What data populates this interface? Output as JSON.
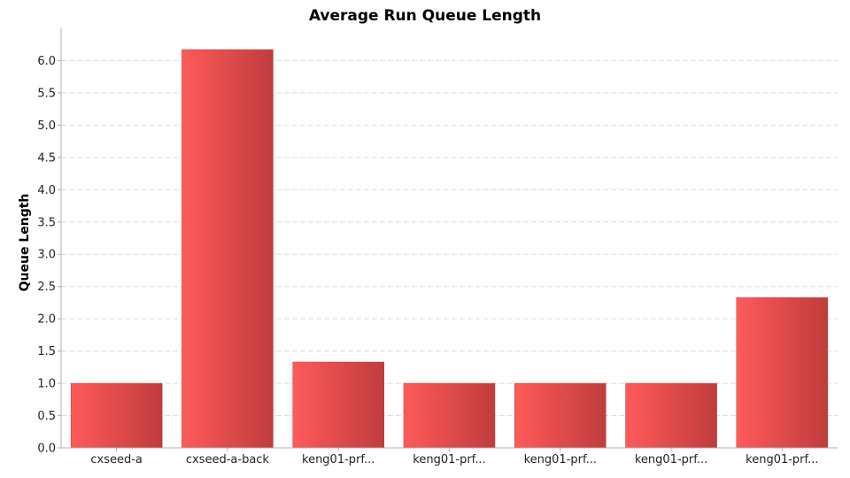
{
  "chart_data": {
    "type": "bar",
    "title": "Average Run Queue Length",
    "xlabel": "",
    "ylabel": "Queue Length",
    "categories": [
      "cxseed-a",
      "cxseed-a-back",
      "keng01-prf...",
      "keng01-prf...",
      "keng01-prf...",
      "keng01-prf...",
      "keng01-prf..."
    ],
    "values": [
      1.0,
      6.17,
      1.33,
      1.0,
      1.0,
      1.0,
      2.33
    ],
    "ylim": [
      0,
      6.5
    ],
    "yticks": [
      "0.0",
      "0.5",
      "1.0",
      "1.5",
      "2.0",
      "2.5",
      "3.0",
      "3.5",
      "4.0",
      "4.5",
      "5.0",
      "5.5",
      "6.0"
    ],
    "grid": true,
    "legend": "none",
    "bar_color_light": "#ff5a5a",
    "bar_color_dark": "#c03c3c"
  }
}
